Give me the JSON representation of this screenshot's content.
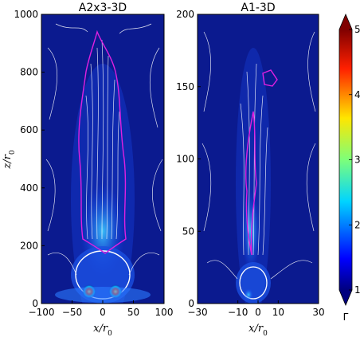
{
  "chart_data": [
    {
      "type": "heatmap",
      "title": "A2x3-3D",
      "xlabel": "x/r0",
      "ylabel": "z/r0",
      "xlim": [
        -100,
        100
      ],
      "ylim": [
        0,
        1000
      ],
      "xticks": [
        "−100",
        "−50",
        "0",
        "50",
        "100"
      ],
      "yticks": [
        "0",
        "200",
        "400",
        "600",
        "800",
        "1000"
      ],
      "xtick_values": [
        -100,
        -50,
        0,
        50,
        100
      ],
      "ytick_values": [
        0,
        200,
        400,
        600,
        800,
        1000
      ],
      "overlays": [
        "white streamlines",
        "magenta contour"
      ]
    },
    {
      "type": "heatmap",
      "title": "A1-3D",
      "xlabel": "x/r0",
      "ylabel": "",
      "xlim": [
        -30,
        30
      ],
      "ylim": [
        0,
        200
      ],
      "xticks": [
        "−30",
        "−10",
        "0",
        "10",
        "30"
      ],
      "yticks": [
        "0",
        "50",
        "100",
        "150",
        "200"
      ],
      "xtick_values": [
        -30,
        -10,
        0,
        10,
        30
      ],
      "ytick_values": [
        0,
        50,
        100,
        150,
        200
      ],
      "overlays": [
        "white streamlines",
        "magenta contour"
      ]
    }
  ],
  "colorbar": {
    "label": "Γ",
    "range": [
      1,
      5
    ],
    "ticks": [
      "1",
      "2",
      "3",
      "4",
      "5"
    ],
    "tick_values": [
      1,
      2,
      3,
      4,
      5
    ],
    "colormap": "jet",
    "extend": "both"
  },
  "colors": {
    "background": "#0b1a8f",
    "streamline": "#ffffff",
    "contour": "#e020e0"
  }
}
